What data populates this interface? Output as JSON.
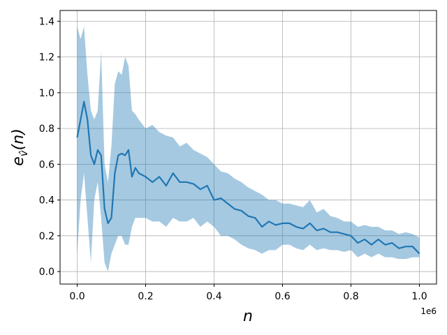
{
  "chart_data": {
    "type": "line",
    "xlabel": "n",
    "ylabel": {
      "base": "e",
      "sub": "v̂",
      "tail": "(n)"
    },
    "x_offset_label": "1e6",
    "x": [
      0,
      10000,
      20000,
      30000,
      40000,
      50000,
      60000,
      70000,
      80000,
      90000,
      100000,
      110000,
      120000,
      130000,
      140000,
      150000,
      160000,
      170000,
      180000,
      200000,
      220000,
      240000,
      260000,
      280000,
      300000,
      320000,
      340000,
      360000,
      380000,
      400000,
      420000,
      440000,
      460000,
      480000,
      500000,
      520000,
      540000,
      560000,
      580000,
      600000,
      620000,
      640000,
      660000,
      680000,
      700000,
      720000,
      740000,
      760000,
      780000,
      800000,
      820000,
      840000,
      860000,
      880000,
      900000,
      920000,
      940000,
      960000,
      980000,
      1000000
    ],
    "series": [
      {
        "color": "#1f77b4",
        "values": [
          0.75,
          0.85,
          0.95,
          0.85,
          0.65,
          0.6,
          0.68,
          0.65,
          0.35,
          0.27,
          0.3,
          0.55,
          0.65,
          0.66,
          0.65,
          0.68,
          0.53,
          0.58,
          0.55,
          0.53,
          0.5,
          0.53,
          0.48,
          0.55,
          0.5,
          0.5,
          0.49,
          0.46,
          0.48,
          0.4,
          0.41,
          0.38,
          0.35,
          0.34,
          0.31,
          0.3,
          0.25,
          0.28,
          0.26,
          0.27,
          0.27,
          0.25,
          0.24,
          0.27,
          0.23,
          0.24,
          0.22,
          0.22,
          0.21,
          0.2,
          0.16,
          0.18,
          0.15,
          0.18,
          0.15,
          0.16,
          0.13,
          0.14,
          0.14,
          0.1
        ]
      }
    ],
    "band": {
      "color": "#1f77b4",
      "opacity": 0.4,
      "upper": [
        1.37,
        1.3,
        1.37,
        1.1,
        0.9,
        0.85,
        0.9,
        1.23,
        0.6,
        0.5,
        0.7,
        1.05,
        1.12,
        1.1,
        1.2,
        1.15,
        0.9,
        0.88,
        0.85,
        0.8,
        0.82,
        0.78,
        0.76,
        0.75,
        0.7,
        0.72,
        0.68,
        0.66,
        0.64,
        0.6,
        0.56,
        0.55,
        0.52,
        0.5,
        0.47,
        0.45,
        0.43,
        0.4,
        0.4,
        0.38,
        0.38,
        0.37,
        0.36,
        0.4,
        0.33,
        0.35,
        0.31,
        0.3,
        0.28,
        0.28,
        0.25,
        0.26,
        0.25,
        0.25,
        0.23,
        0.23,
        0.21,
        0.22,
        0.21,
        0.19
      ],
      "lower": [
        0.1,
        0.4,
        0.55,
        0.3,
        0.05,
        0.4,
        0.5,
        0.3,
        0.05,
        0.0,
        0.1,
        0.15,
        0.2,
        0.2,
        0.15,
        0.15,
        0.25,
        0.3,
        0.3,
        0.3,
        0.28,
        0.28,
        0.25,
        0.3,
        0.28,
        0.28,
        0.3,
        0.25,
        0.28,
        0.25,
        0.2,
        0.2,
        0.18,
        0.15,
        0.13,
        0.12,
        0.1,
        0.12,
        0.12,
        0.15,
        0.15,
        0.13,
        0.12,
        0.15,
        0.12,
        0.13,
        0.12,
        0.12,
        0.11,
        0.12,
        0.08,
        0.1,
        0.08,
        0.1,
        0.08,
        0.08,
        0.07,
        0.07,
        0.08,
        0.08
      ]
    },
    "xlim": [
      -50000,
      1050000
    ],
    "ylim": [
      -0.07,
      1.46
    ],
    "xticks": [
      {
        "value": 0,
        "label": "0.0"
      },
      {
        "value": 200000,
        "label": "0.2"
      },
      {
        "value": 400000,
        "label": "0.4"
      },
      {
        "value": 600000,
        "label": "0.6"
      },
      {
        "value": 800000,
        "label": "0.8"
      },
      {
        "value": 1000000,
        "label": "1.0"
      }
    ],
    "yticks": [
      {
        "value": 0,
        "label": "0.0"
      },
      0.2,
      0.4,
      0.6,
      0.8,
      {
        "value": 1,
        "label": "1.0"
      },
      1.2,
      1.4
    ],
    "grid": true
  }
}
